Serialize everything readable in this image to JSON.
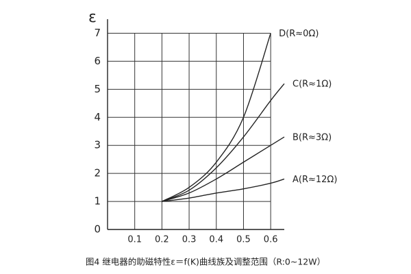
{
  "chart_data": {
    "type": "line",
    "title": "图4 继电器的助磁特性ε＝f(K)曲线族及调整范围（R:0~12W）",
    "y_label": "ε",
    "x": [
      0.2,
      0.3,
      0.4,
      0.5,
      0.6,
      0.65
    ],
    "series": [
      {
        "name": "D(R≈0Ω)",
        "color": "#222222",
        "values": [
          1,
          1.5,
          2.4,
          4.0,
          7,
          null
        ]
      },
      {
        "name": "C(R≈1Ω)",
        "color": "#222222",
        "values": [
          1,
          1.4,
          2.2,
          3.3,
          4.6,
          5.2
        ]
      },
      {
        "name": "B(R≈3Ω)",
        "color": "#222222",
        "values": [
          1,
          1.3,
          1.8,
          2.4,
          3.0,
          3.3
        ]
      },
      {
        "name": "A(R≈12Ω)",
        "color": "#222222",
        "values": [
          1,
          1.12,
          1.3,
          1.45,
          1.65,
          1.8
        ]
      }
    ],
    "xlim": [
      0,
      0.65
    ],
    "ylim": [
      0,
      7.5
    ],
    "xticks": [
      0.1,
      0.2,
      0.3,
      0.4,
      0.5,
      0.6
    ],
    "yticks": [
      0,
      1,
      2,
      3,
      4,
      5,
      6,
      7
    ],
    "grid": true
  }
}
